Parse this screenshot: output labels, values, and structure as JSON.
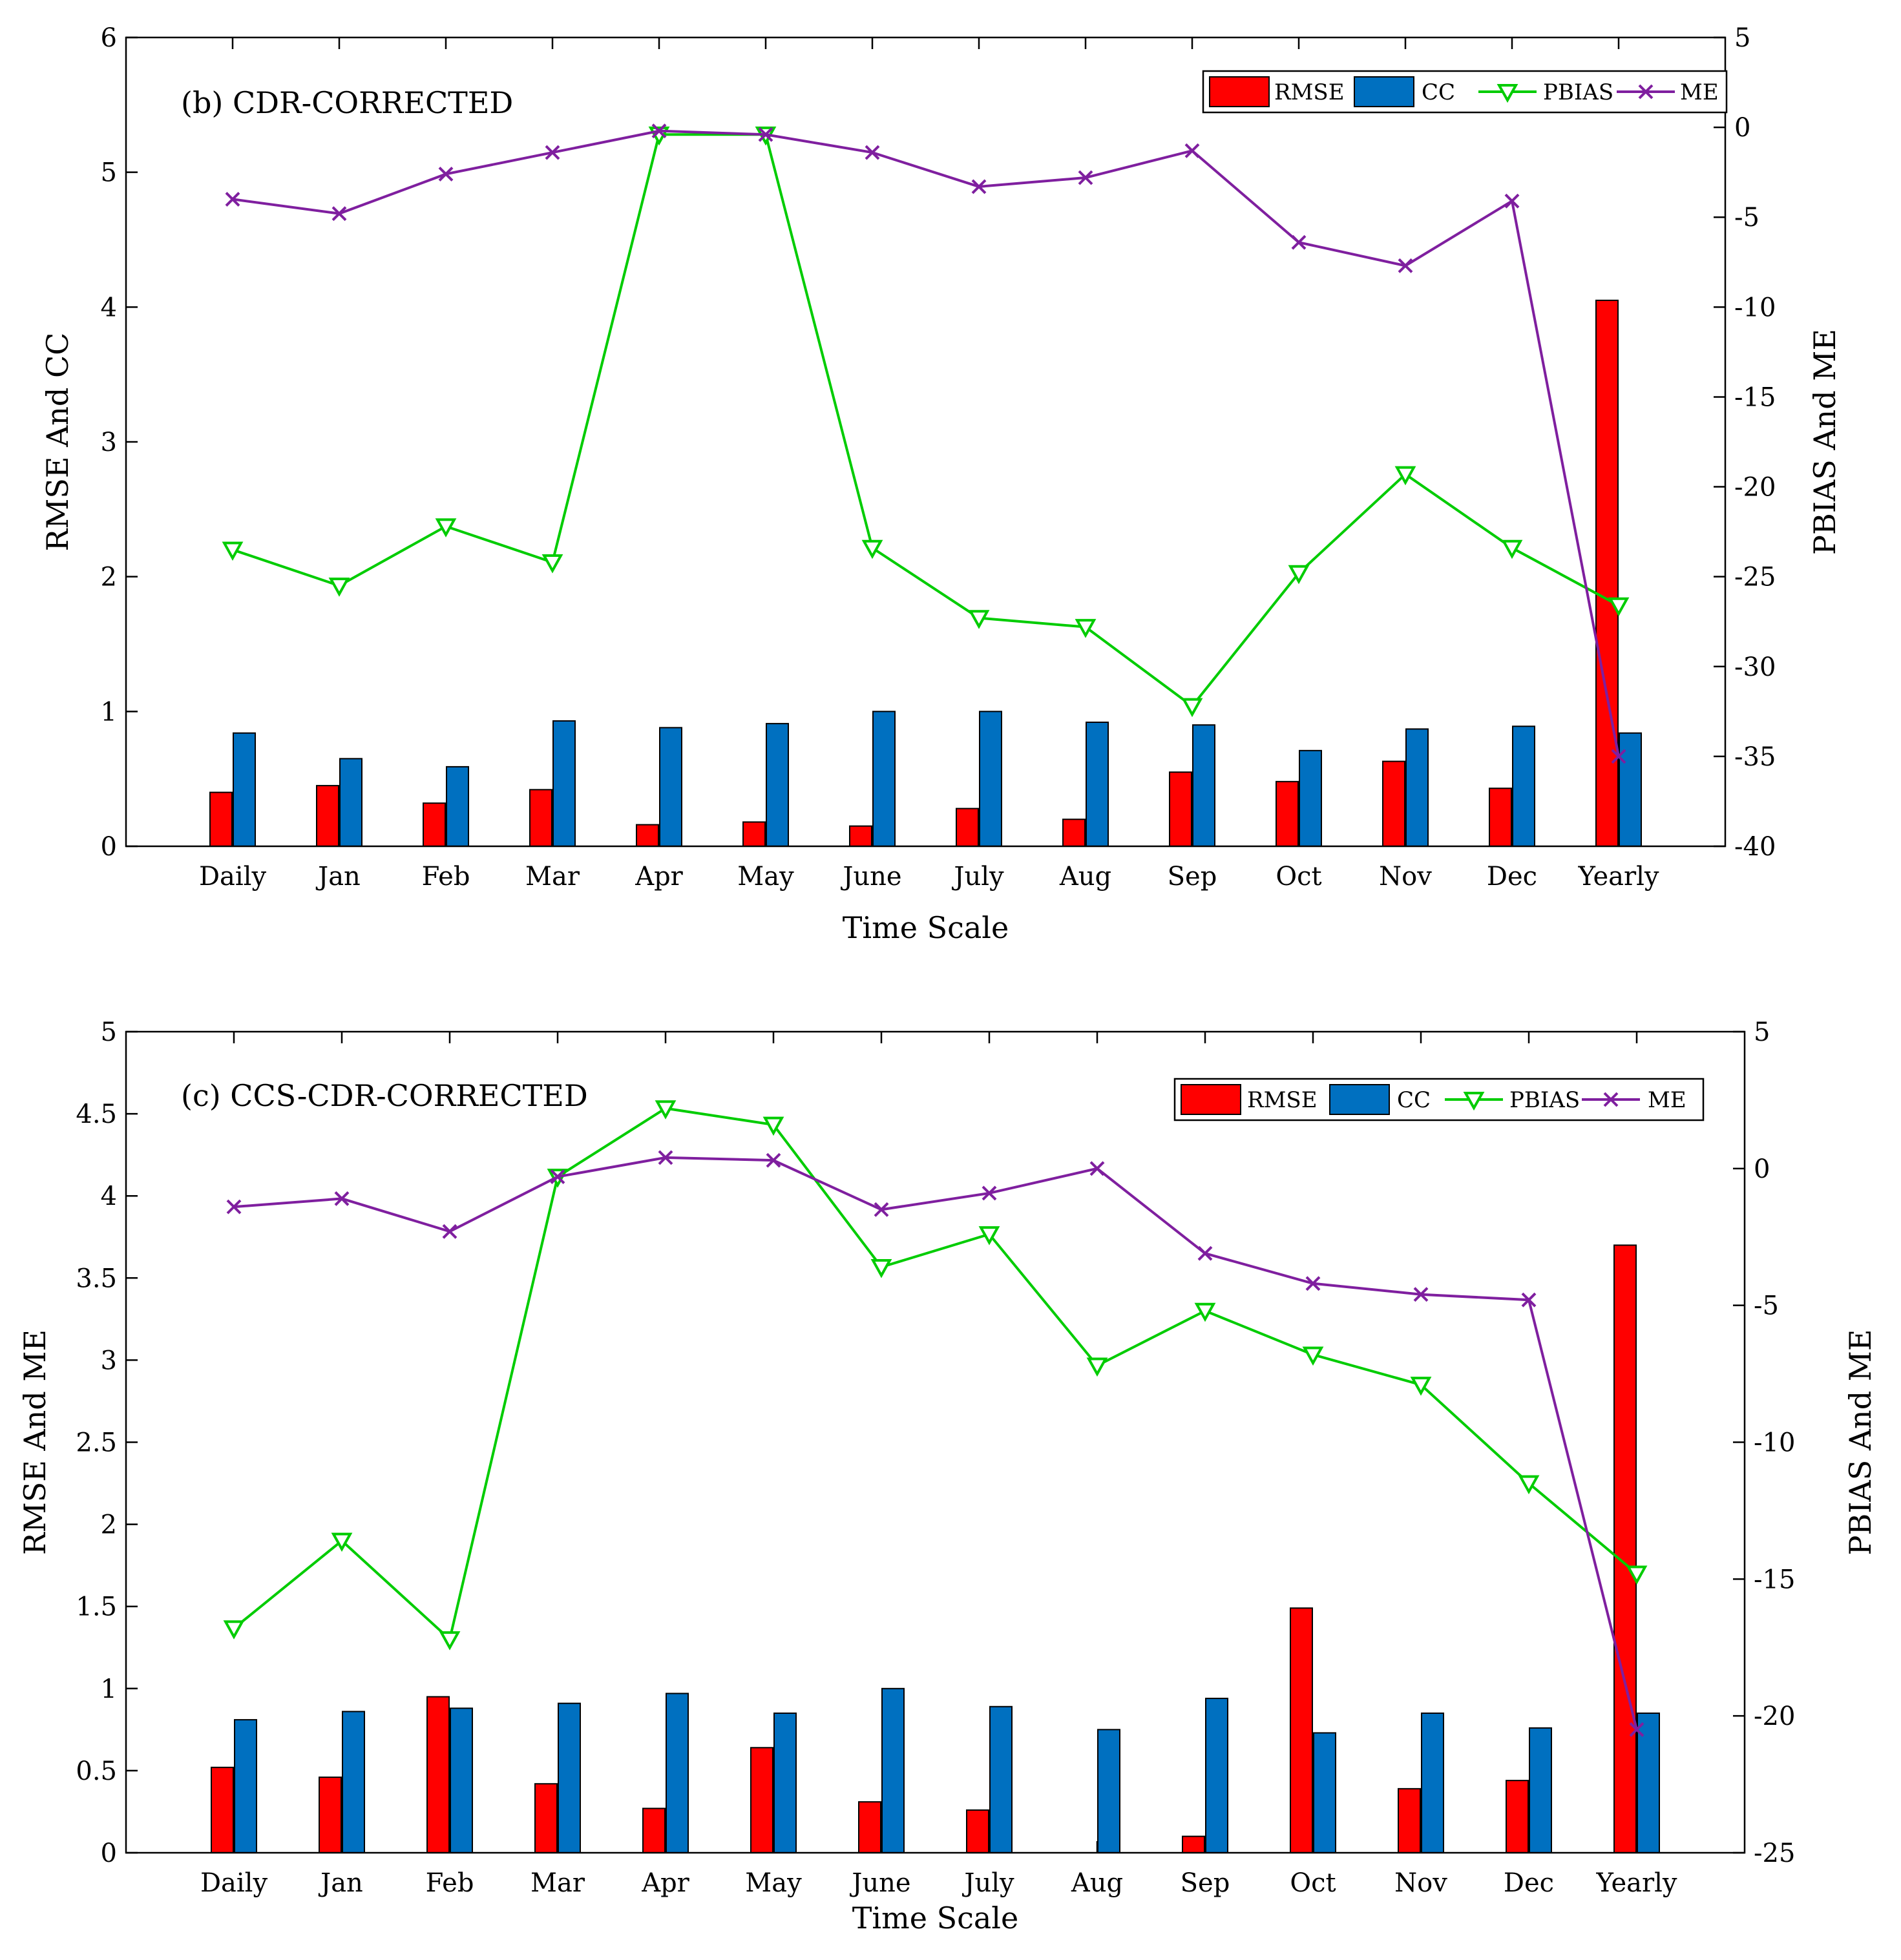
{
  "chart_data": [
    {
      "type": "bar",
      "title": "(b) CDR-CORRECTED",
      "xlabel": "Time Scale",
      "ylabel_left": "RMSE And CC",
      "ylabel_right": "PBIAS And ME",
      "ylim_left": [
        0,
        6
      ],
      "ylim_right": [
        -40,
        5
      ],
      "yticks_left": [
        "0",
        "1",
        "2",
        "3",
        "4",
        "5",
        "6"
      ],
      "yticks_right": [
        "-40",
        "-35",
        "-30",
        "-25",
        "-20",
        "-15",
        "-10",
        "-5",
        "0",
        "5"
      ],
      "categories": [
        "Daily",
        "Jan",
        "Feb",
        "Mar",
        "Apr",
        "May",
        "June",
        "July",
        "Aug",
        "Sep",
        "Oct",
        "Nov",
        "Dec",
        "Yearly"
      ],
      "legend": [
        "RMSE",
        "CC",
        "PBIAS",
        "ME"
      ],
      "legend_position": "top-right",
      "series": [
        {
          "name": "RMSE",
          "axis": "left",
          "kind": "bar",
          "color": "#ff0000",
          "values": [
            0.4,
            0.45,
            0.32,
            0.42,
            0.16,
            0.18,
            0.15,
            0.28,
            0.2,
            0.55,
            0.48,
            0.63,
            0.43,
            4.05
          ]
        },
        {
          "name": "CC",
          "axis": "left",
          "kind": "bar",
          "color": "#0070c0",
          "values": [
            0.84,
            0.65,
            0.59,
            0.93,
            0.88,
            0.91,
            1.0,
            1.0,
            0.92,
            0.9,
            0.71,
            0.87,
            0.89,
            0.84
          ]
        },
        {
          "name": "PBIAS",
          "axis": "right",
          "kind": "line",
          "marker": "triangle-down",
          "color": "#00cc00",
          "values": [
            -23.5,
            -25.5,
            -22.2,
            -24.2,
            -0.4,
            -0.4,
            -23.4,
            -27.3,
            -27.8,
            -32.2,
            -24.8,
            -19.3,
            -23.4,
            -26.6
          ]
        },
        {
          "name": "ME",
          "axis": "right",
          "kind": "line",
          "marker": "x",
          "color": "#7f1f9f",
          "values": [
            -4.0,
            -4.8,
            -2.6,
            -1.4,
            -0.2,
            -0.4,
            -1.4,
            -3.3,
            -2.8,
            -1.3,
            -6.4,
            -7.7,
            -4.1,
            -35.0
          ]
        }
      ]
    },
    {
      "type": "bar",
      "title": "(c) CCS-CDR-CORRECTED",
      "xlabel": "Time Scale",
      "ylabel_left": "RMSE And ME",
      "ylabel_right": "PBIAS And ME",
      "ylim_left": [
        0,
        5
      ],
      "ylim_right": [
        -25,
        5
      ],
      "yticks_left": [
        "0",
        "0.5",
        "1",
        "1.5",
        "2",
        "2.5",
        "3",
        "3.5",
        "4",
        "4.5",
        "5"
      ],
      "yticks_right": [
        "-25",
        "-20",
        "-15",
        "-10",
        "-5",
        "0",
        "5"
      ],
      "categories": [
        "Daily",
        "Jan",
        "Feb",
        "Mar",
        "Apr",
        "May",
        "June",
        "July",
        "Aug",
        "Sep",
        "Oct",
        "Nov",
        "Dec",
        "Yearly"
      ],
      "legend": [
        "RMSE",
        "CC",
        "PBIAS",
        "ME"
      ],
      "legend_position": "top-right",
      "series": [
        {
          "name": "RMSE",
          "axis": "left",
          "kind": "bar",
          "color": "#ff0000",
          "values": [
            0.52,
            0.46,
            0.95,
            0.42,
            0.27,
            0.64,
            0.31,
            0.26,
            0.0,
            0.1,
            1.49,
            0.39,
            0.44,
            3.7
          ]
        },
        {
          "name": "CC",
          "axis": "left",
          "kind": "bar",
          "color": "#0070c0",
          "values": [
            0.81,
            0.86,
            0.88,
            0.91,
            0.97,
            0.85,
            1.0,
            0.89,
            0.75,
            0.94,
            0.73,
            0.85,
            0.76,
            0.85
          ]
        },
        {
          "name": "PBIAS",
          "axis": "right",
          "kind": "line",
          "marker": "triangle-down",
          "color": "#00cc00",
          "values": [
            -16.8,
            -13.6,
            -17.2,
            -0.3,
            2.2,
            1.6,
            -3.6,
            -2.4,
            -7.2,
            -5.2,
            -6.8,
            -7.9,
            -11.5,
            -14.8
          ]
        },
        {
          "name": "ME",
          "axis": "right",
          "kind": "line",
          "marker": "x",
          "color": "#7f1f9f",
          "values": [
            -1.4,
            -1.1,
            -2.3,
            -0.3,
            0.4,
            0.3,
            -1.5,
            -0.9,
            0.0,
            -3.1,
            -4.2,
            -4.6,
            -4.8,
            -20.5
          ]
        }
      ]
    }
  ]
}
